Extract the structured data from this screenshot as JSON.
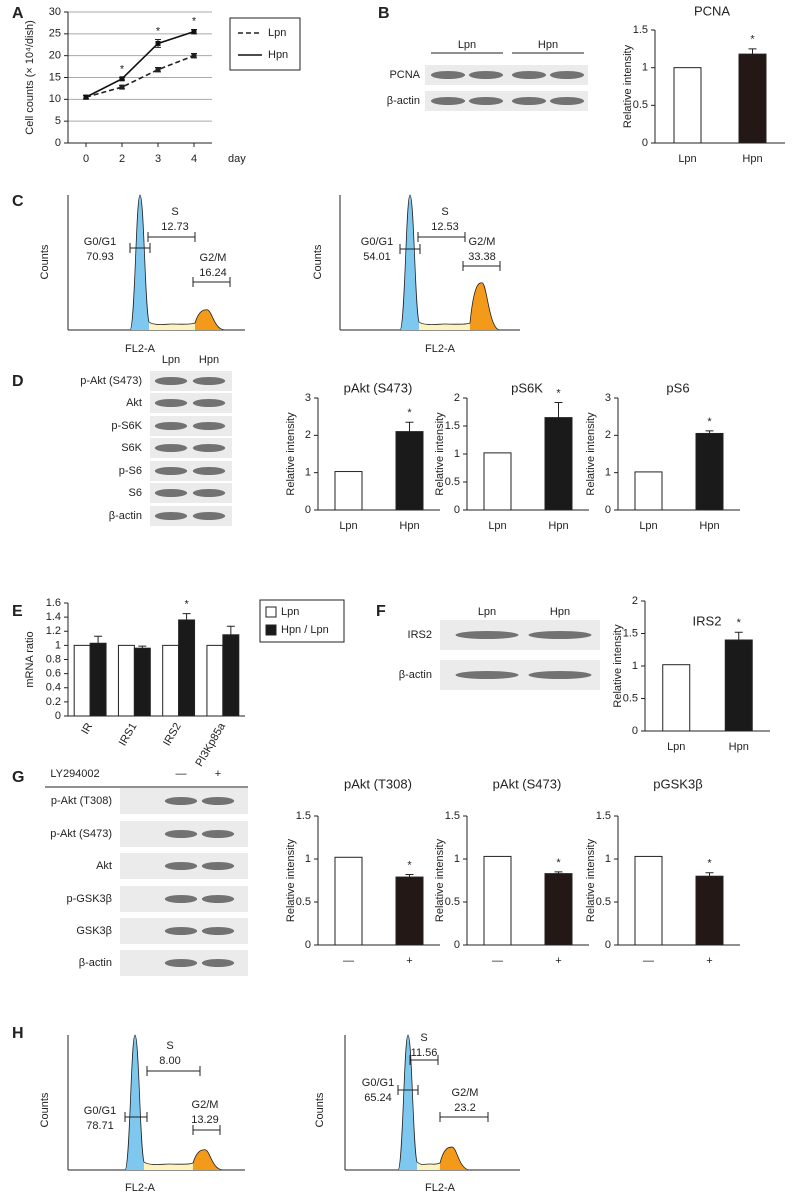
{
  "panels": [
    "A",
    "B",
    "C",
    "D",
    "E",
    "F",
    "G",
    "H"
  ],
  "blots": [
    {
      "lanes": [
        "Lpn",
        "Hpn"
      ],
      "rows": [
        "PCNA",
        "β-actin"
      ]
    },
    {
      "lanes": [
        "Lpn",
        "Hpn"
      ],
      "rows": [
        "p-Akt (S473)",
        "Akt",
        "p-S6K",
        "S6K",
        "p-S6",
        "S6",
        "β-actin"
      ]
    },
    {
      "lanes": [
        "Lpn",
        "Hpn"
      ],
      "rows": [
        "IRS2",
        "β-actin"
      ]
    },
    {
      "treatment": "LY294002",
      "lanes": [
        "—",
        "+"
      ],
      "rows": [
        "p-Akt (T308)",
        "p-Akt (S473)",
        "Akt",
        "p-GSK3β",
        "GSK3β",
        "β-actin"
      ]
    }
  ],
  "chart_data": [
    {
      "type": "line",
      "categories": [
        "0",
        "2",
        "3",
        "4"
      ],
      "x_label": "day",
      "y_label": "Cell counts (× 10⁴/dish)",
      "series": [
        {
          "name": "Lpn",
          "color": "#222222",
          "dash": true,
          "values": [
            10.5,
            12.8,
            16.8,
            20.0
          ],
          "errors": [
            0.4,
            0.4,
            0.5,
            0.5
          ]
        },
        {
          "name": "Hpn",
          "color": "#111111",
          "dash": false,
          "values": [
            10.5,
            14.7,
            22.8,
            25.5
          ],
          "errors": [
            0.4,
            0.3,
            0.9,
            0.5
          ]
        }
      ],
      "ylim": [
        0,
        30
      ],
      "yticks": [
        0,
        5,
        10,
        15,
        20,
        25,
        30
      ],
      "grid": true,
      "annotations": [
        {
          "index": 1,
          "text": "*"
        },
        {
          "index": 2,
          "text": "*"
        },
        {
          "index": 3,
          "text": "*"
        }
      ]
    },
    {
      "type": "bar",
      "title": "PCNA",
      "y_label": "Relative intensity",
      "categories": [
        "Lpn",
        "Hpn"
      ],
      "values": [
        1.0,
        1.18
      ],
      "errors": [
        null,
        0.07
      ],
      "colors": [
        "#ffffff",
        "#231815"
      ],
      "ylim": [
        0,
        1.5
      ],
      "yticks": [
        0,
        0.5,
        1,
        1.5
      ],
      "annotations": [
        {
          "index": 1,
          "text": "*"
        }
      ]
    },
    {
      "type": "flow",
      "x_label": "FL2-A",
      "y_label": "Counts",
      "phases": [
        "G0/G1",
        "S",
        "G2/M"
      ],
      "values": [
        70.93,
        12.73,
        16.24
      ]
    },
    {
      "type": "flow",
      "x_label": "FL2-A",
      "y_label": "Counts",
      "phases": [
        "G0/G1",
        "S",
        "G2/M"
      ],
      "values": [
        54.01,
        12.53,
        33.38
      ]
    },
    {
      "type": "bar",
      "title": "pAkt (S473)",
      "y_label": "Relative intensity",
      "categories": [
        "Lpn",
        "Hpn"
      ],
      "values": [
        1.03,
        2.1
      ],
      "errors": [
        null,
        0.25
      ],
      "colors": [
        "#ffffff",
        "#1a1a1a"
      ],
      "ylim": [
        0,
        3
      ],
      "yticks": [
        0,
        1,
        2,
        3
      ],
      "annotations": [
        {
          "index": 1,
          "text": "*"
        }
      ]
    },
    {
      "type": "bar",
      "title": "pS6K",
      "y_label": "Relative intensity",
      "categories": [
        "Lpn",
        "Hpn"
      ],
      "values": [
        1.02,
        1.65
      ],
      "errors": [
        null,
        0.27
      ],
      "colors": [
        "#ffffff",
        "#1a1a1a"
      ],
      "ylim": [
        0,
        2
      ],
      "yticks": [
        0,
        0.5,
        1,
        1.5,
        2
      ],
      "annotations": [
        {
          "index": 1,
          "text": "*"
        }
      ]
    },
    {
      "type": "bar",
      "title": "pS6",
      "y_label": "Relative intensity",
      "categories": [
        "Lpn",
        "Hpn"
      ],
      "values": [
        1.02,
        2.05
      ],
      "errors": [
        null,
        0.07
      ],
      "colors": [
        "#ffffff",
        "#1a1a1a"
      ],
      "ylim": [
        0,
        3
      ],
      "yticks": [
        0,
        1,
        2,
        3
      ],
      "annotations": [
        {
          "index": 1,
          "text": "*"
        }
      ]
    },
    {
      "type": "grouped_bar",
      "y_label": "mRNA ratio",
      "categories": [
        "IR",
        "IRS1",
        "IRS2",
        "PI3Kp85a"
      ],
      "series": [
        {
          "name": "Lpn",
          "color": "#ffffff",
          "values": [
            1,
            1,
            1,
            1
          ]
        },
        {
          "name": "Hpn / Lpn",
          "color": "#1a1a1a",
          "values": [
            1.03,
            0.96,
            1.36,
            1.15
          ],
          "errors": [
            0.1,
            0.03,
            0.09,
            0.12
          ]
        }
      ],
      "ylim": [
        0,
        1.6
      ],
      "yticks": [
        0,
        0.2,
        0.4,
        0.6,
        0.8,
        1,
        1.2,
        1.4,
        1.6
      ],
      "annotations": [
        {
          "index": 2,
          "text": "*"
        }
      ]
    },
    {
      "type": "bar",
      "title": "IRS2",
      "y_label": "Relative intensity",
      "categories": [
        "Lpn",
        "Hpn"
      ],
      "values": [
        1.02,
        1.4
      ],
      "errors": [
        null,
        0.12
      ],
      "colors": [
        "#ffffff",
        "#1a1a1a"
      ],
      "ylim": [
        0,
        2
      ],
      "yticks": [
        0,
        0.5,
        1,
        1.5,
        2
      ],
      "annotations": [
        {
          "index": 1,
          "text": "*"
        }
      ]
    },
    {
      "type": "bar",
      "title": "pAkt (T308)",
      "y_label": "Relative intensity",
      "categories": [
        "—",
        "+"
      ],
      "values": [
        1.02,
        0.79
      ],
      "errors": [
        null,
        0.03
      ],
      "colors": [
        "#ffffff",
        "#231815"
      ],
      "ylim": [
        0,
        1.5
      ],
      "yticks": [
        0,
        0.5,
        1,
        1.5
      ],
      "annotations": [
        {
          "index": 1,
          "text": "*"
        }
      ]
    },
    {
      "type": "bar",
      "title": "pAkt (S473)",
      "y_label": "Relative intensity",
      "categories": [
        "—",
        "+"
      ],
      "values": [
        1.03,
        0.83
      ],
      "errors": [
        null,
        0.02
      ],
      "colors": [
        "#ffffff",
        "#231815"
      ],
      "ylim": [
        0,
        1.5
      ],
      "yticks": [
        0,
        0.5,
        1,
        1.5
      ],
      "annotations": [
        {
          "index": 1,
          "text": "*"
        }
      ]
    },
    {
      "type": "bar",
      "title": "pGSK3β",
      "y_label": "Relative intensity",
      "categories": [
        "—",
        "+"
      ],
      "values": [
        1.03,
        0.8
      ],
      "errors": [
        null,
        0.04
      ],
      "colors": [
        "#ffffff",
        "#231815"
      ],
      "ylim": [
        0,
        1.5
      ],
      "yticks": [
        0,
        0.5,
        1,
        1.5
      ],
      "annotations": [
        {
          "index": 1,
          "text": "*"
        }
      ]
    },
    {
      "type": "flow",
      "x_label": "FL2-A",
      "y_label": "Counts",
      "phases": [
        "G0/G1",
        "S",
        "G2/M"
      ],
      "values": [
        78.71,
        8.0,
        13.29
      ],
      "value_labels": [
        "78.71",
        "8.00",
        "13.29"
      ]
    },
    {
      "type": "flow",
      "x_label": "FL2-A",
      "y_label": "Counts",
      "phases": [
        "G0/G1",
        "S",
        "G2/M"
      ],
      "values": [
        65.24,
        11.56,
        23.2
      ]
    }
  ]
}
